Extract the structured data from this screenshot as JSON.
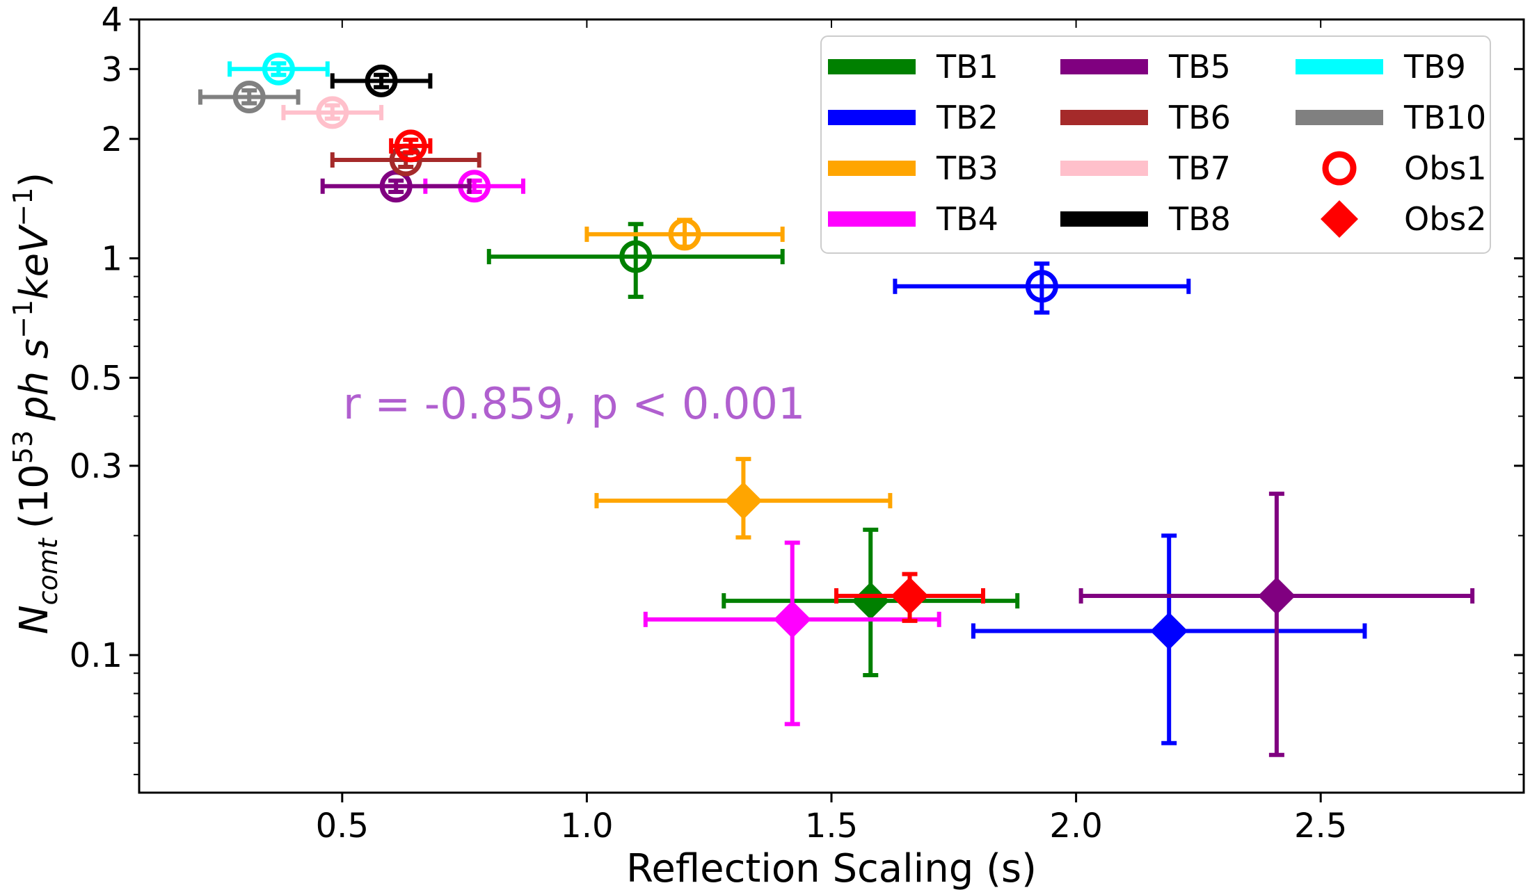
{
  "chart_data": {
    "type": "scatter",
    "title": "",
    "xlabel": "Reflection Scaling (s)",
    "ylabel": {
      "base": "N",
      "subscript": "comt",
      "unit_prefix": "(10",
      "exponent": "53",
      "unit": "ph s",
      "unit_exponent": "−1",
      "unit_suffix": "keV",
      "close": ")"
    },
    "xscale": "linear",
    "yscale": "log",
    "xlim": [
      0.085,
      2.915
    ],
    "ylim": [
      0.045,
      4.0
    ],
    "xticks": [
      0.5,
      1.0,
      1.5,
      2.0,
      2.5
    ],
    "xtick_labels": [
      "0.5",
      "1.0",
      "1.5",
      "2.0",
      "2.5"
    ],
    "yticks": [
      0.1,
      0.3,
      0.5,
      1,
      2,
      3,
      4
    ],
    "ytick_labels": [
      "0.1",
      "0.3",
      "0.5",
      "1",
      "2",
      "3",
      "4"
    ],
    "yminor_ticks": [
      0.05,
      0.06,
      0.07,
      0.08,
      0.09,
      0.2,
      0.4,
      0.6,
      0.7,
      0.8,
      0.9
    ],
    "grid": false,
    "legend_position": "top-right",
    "annotation": "r = -0.859, p < 0.001",
    "annotation_color": "#b05fcf",
    "legend": [
      {
        "label": "TB1",
        "color": "#008000",
        "kind": "line"
      },
      {
        "label": "TB2",
        "color": "#0000ff",
        "kind": "line"
      },
      {
        "label": "TB3",
        "color": "#ffa500",
        "kind": "line"
      },
      {
        "label": "TB4",
        "color": "#ff00ff",
        "kind": "line"
      },
      {
        "label": "TB5",
        "color": "#800080",
        "kind": "line"
      },
      {
        "label": "TB6",
        "color": "#a52a2a",
        "kind": "line"
      },
      {
        "label": "TB7",
        "color": "#ffc0cb",
        "kind": "line"
      },
      {
        "label": "TB8",
        "color": "#000000",
        "kind": "line"
      },
      {
        "label": "TB9",
        "color": "#00ffff",
        "kind": "line"
      },
      {
        "label": "TB10",
        "color": "#808080",
        "kind": "line"
      },
      {
        "label": "Obs1",
        "color": "#ff0000",
        "kind": "circle"
      },
      {
        "label": "Obs2",
        "color": "#ff0000",
        "kind": "diamond"
      }
    ],
    "series": [
      {
        "name": "Obs1",
        "marker": "circle",
        "points": [
          {
            "tb": "TB1",
            "color": "#008000",
            "x": 1.1,
            "xlo": 0.8,
            "xhi": 1.4,
            "y": 1.01,
            "ylo": 0.8,
            "yhi": 1.22
          },
          {
            "tb": "TB2",
            "color": "#0000ff",
            "x": 1.93,
            "xlo": 1.63,
            "xhi": 2.23,
            "y": 0.85,
            "ylo": 0.73,
            "yhi": 0.97
          },
          {
            "tb": "TB3",
            "color": "#ffa500",
            "x": 1.2,
            "xlo": 1.0,
            "xhi": 1.4,
            "y": 1.15,
            "ylo": 1.07,
            "yhi": 1.25
          },
          {
            "tb": "TB4",
            "color": "#ff00ff",
            "x": 0.77,
            "xlo": 0.67,
            "xhi": 0.87,
            "y": 1.52,
            "ylo": 1.47,
            "yhi": 1.57
          },
          {
            "tb": "TB5",
            "color": "#800080",
            "x": 0.61,
            "xlo": 0.46,
            "xhi": 0.76,
            "y": 1.52,
            "ylo": 1.47,
            "yhi": 1.57
          },
          {
            "tb": "TB6",
            "color": "#a52a2a",
            "x": 0.63,
            "xlo": 0.48,
            "xhi": 0.78,
            "y": 1.77,
            "ylo": 1.7,
            "yhi": 1.84
          },
          {
            "tb": "TB7",
            "color": "#ffc0cb",
            "x": 0.48,
            "xlo": 0.38,
            "xhi": 0.58,
            "y": 2.33,
            "ylo": 2.25,
            "yhi": 2.43
          },
          {
            "tb": "TB8",
            "color": "#000000",
            "x": 0.58,
            "xlo": 0.48,
            "xhi": 0.68,
            "y": 2.8,
            "ylo": 2.7,
            "yhi": 2.9
          },
          {
            "tb": "TB9",
            "color": "#00ffff",
            "x": 0.37,
            "xlo": 0.27,
            "xhi": 0.47,
            "y": 3.0,
            "ylo": 2.9,
            "yhi": 3.1
          },
          {
            "tb": "TB10",
            "color": "#808080",
            "x": 0.31,
            "xlo": 0.21,
            "xhi": 0.41,
            "y": 2.55,
            "ylo": 2.46,
            "yhi": 2.65
          },
          {
            "tb": "Obs1",
            "color": "#ff0000",
            "x": 0.64,
            "xlo": 0.6,
            "xhi": 0.68,
            "y": 1.92,
            "ylo": 1.85,
            "yhi": 1.99
          }
        ]
      },
      {
        "name": "Obs2",
        "marker": "diamond",
        "points": [
          {
            "tb": "TB1",
            "color": "#008000",
            "x": 1.58,
            "xlo": 1.28,
            "xhi": 1.88,
            "y": 0.137,
            "ylo": 0.089,
            "yhi": 0.207
          },
          {
            "tb": "TB2",
            "color": "#0000ff",
            "x": 2.19,
            "xlo": 1.79,
            "xhi": 2.59,
            "y": 0.115,
            "ylo": 0.06,
            "yhi": 0.2
          },
          {
            "tb": "TB3",
            "color": "#ffa500",
            "x": 1.32,
            "xlo": 1.02,
            "xhi": 1.62,
            "y": 0.245,
            "ylo": 0.198,
            "yhi": 0.312
          },
          {
            "tb": "TB4",
            "color": "#ff00ff",
            "x": 1.42,
            "xlo": 1.12,
            "xhi": 1.72,
            "y": 0.123,
            "ylo": 0.067,
            "yhi": 0.192
          },
          {
            "tb": "TB5",
            "color": "#800080",
            "x": 2.41,
            "xlo": 2.01,
            "xhi": 2.81,
            "y": 0.141,
            "ylo": 0.056,
            "yhi": 0.255
          },
          {
            "tb": "Obs2",
            "color": "#ff0000",
            "x": 1.66,
            "xlo": 1.51,
            "xhi": 1.81,
            "y": 0.141,
            "ylo": 0.122,
            "yhi": 0.16
          }
        ]
      }
    ]
  }
}
